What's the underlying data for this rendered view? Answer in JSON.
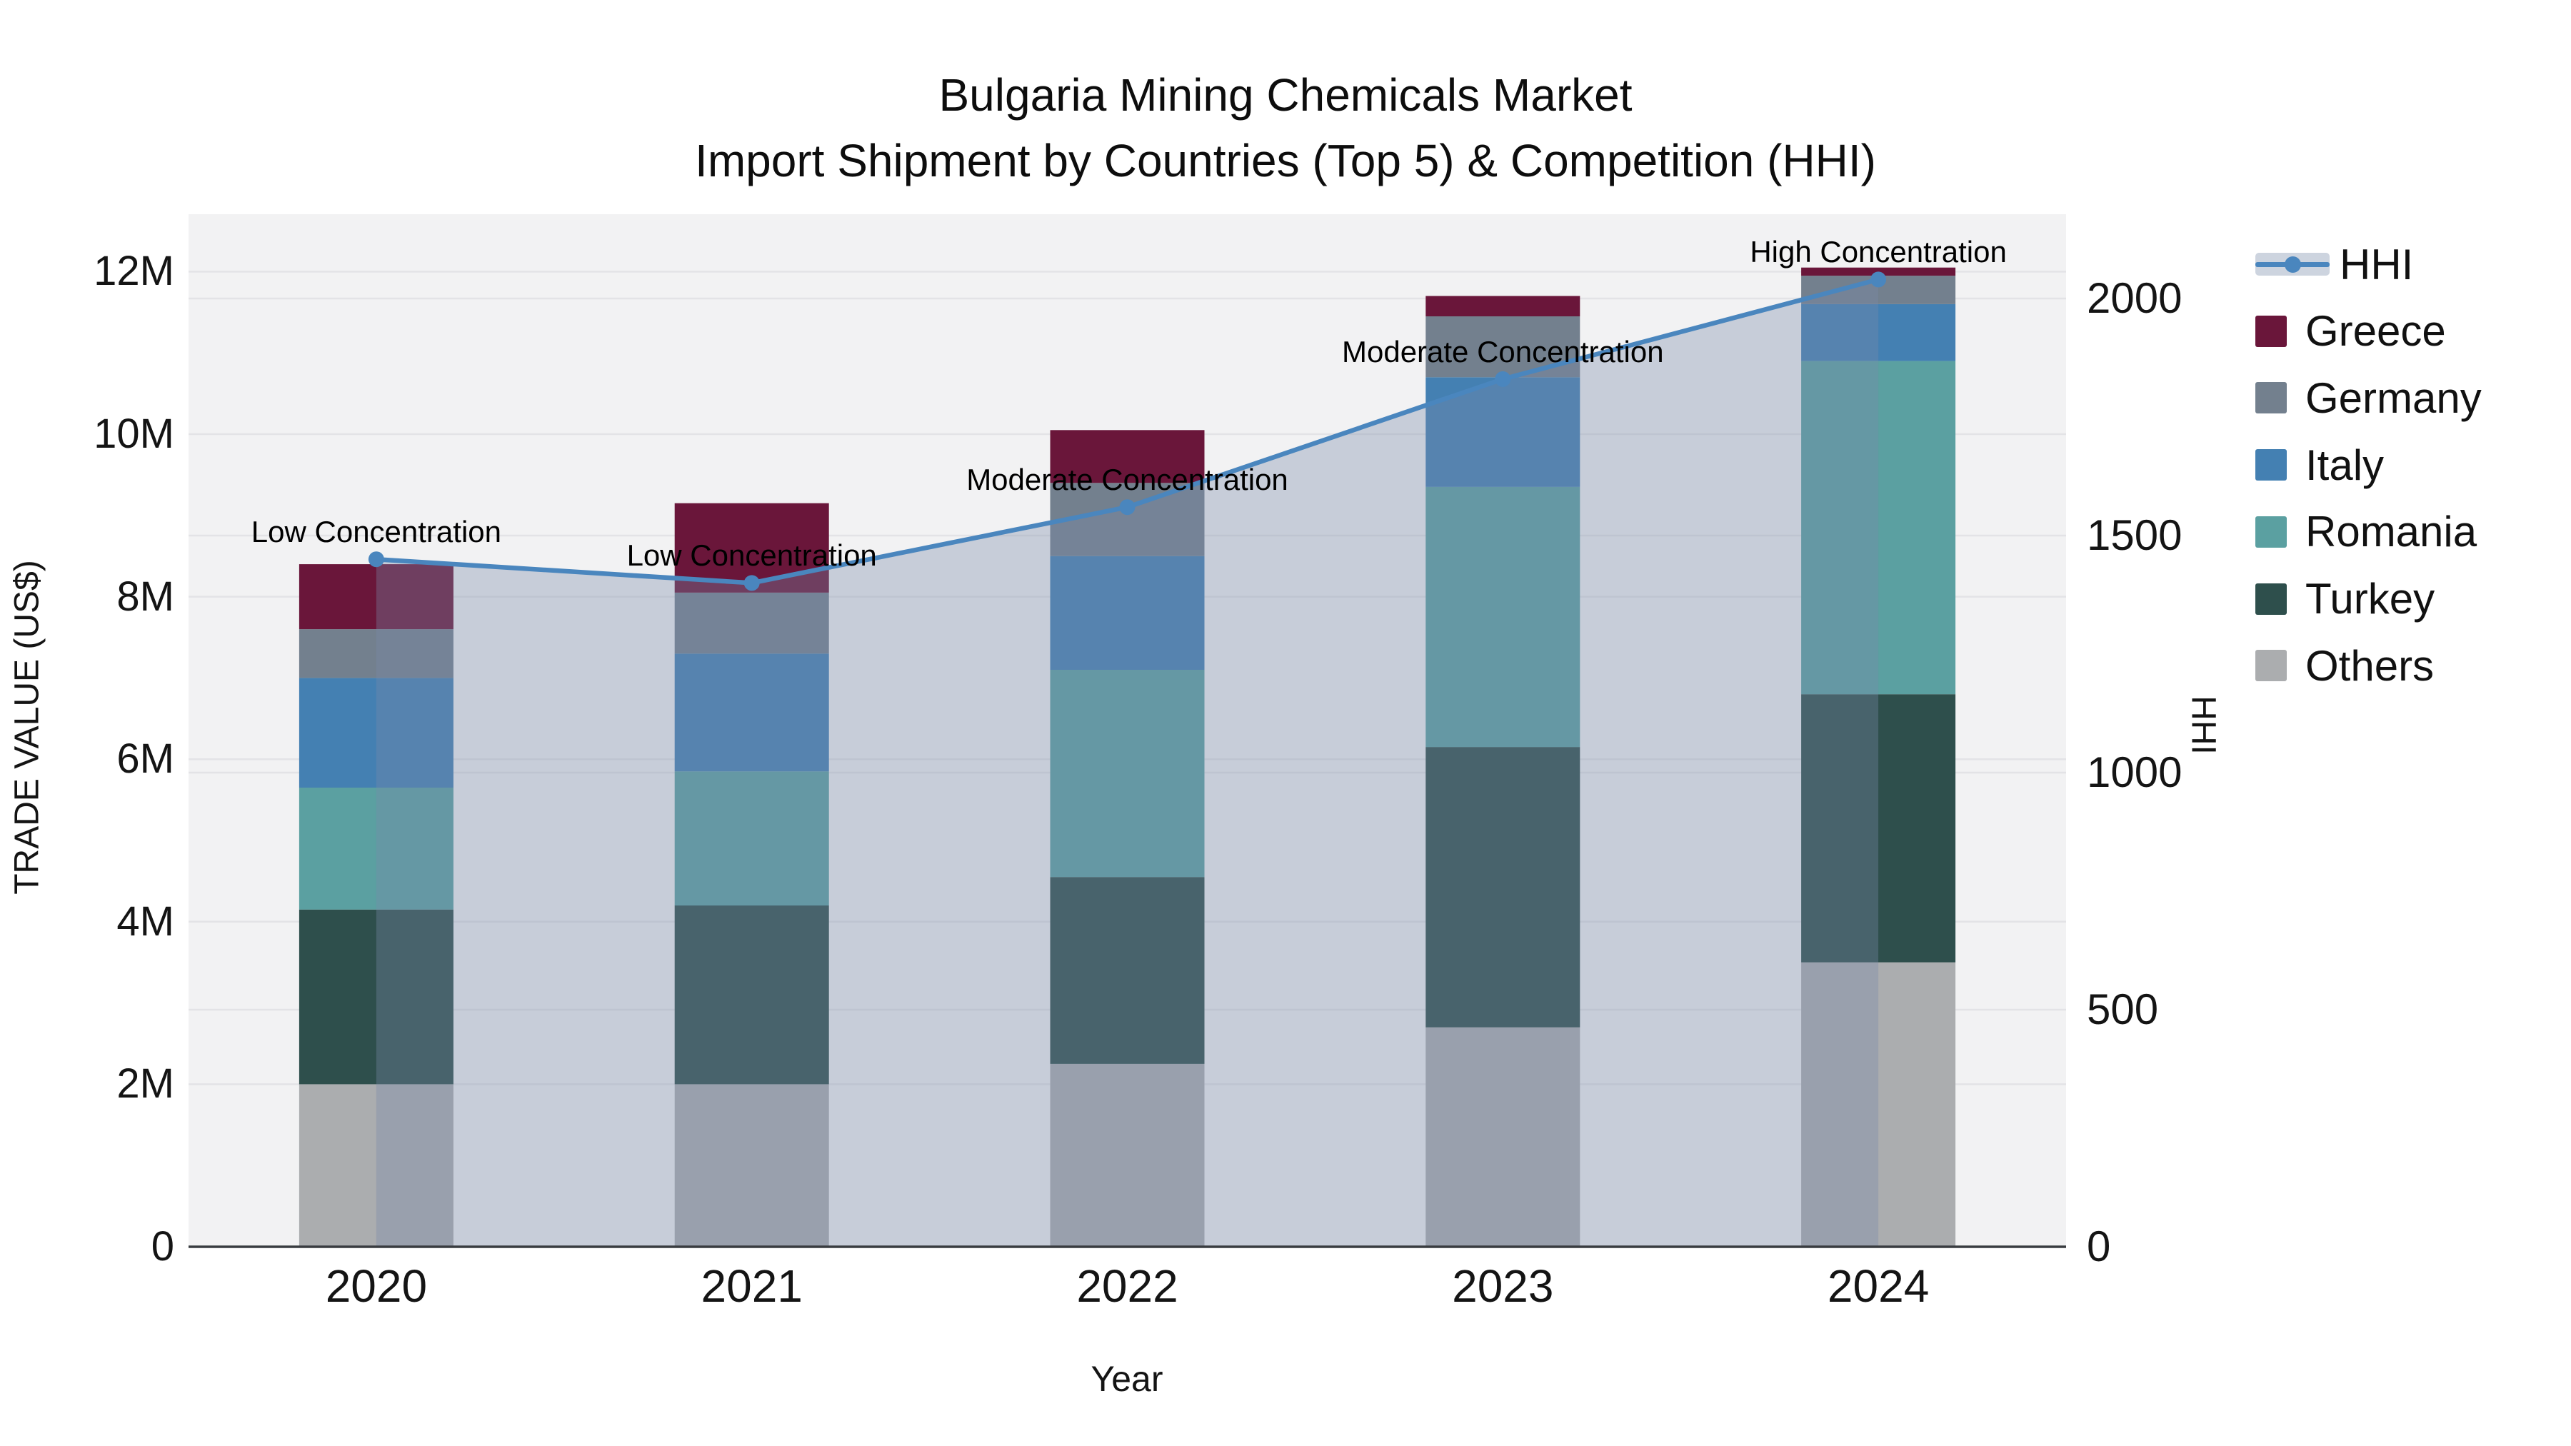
{
  "title": {
    "line1": "Bulgaria Mining Chemicals Market",
    "line2": "Import Shipment by Countries (Top 5) & Competition (HHI)"
  },
  "axes": {
    "y_left": {
      "title": "TRADE VALUE (US$)",
      "ticks": [
        "0",
        "2M",
        "4M",
        "6M",
        "8M",
        "10M",
        "12M"
      ],
      "tick_values": [
        0,
        2,
        4,
        6,
        8,
        10,
        12
      ]
    },
    "y_right": {
      "title": "HHI",
      "ticks": [
        "0",
        "500",
        "1000",
        "1500",
        "2000"
      ],
      "tick_values": [
        0,
        500,
        1000,
        1500,
        2000
      ]
    },
    "x": {
      "title": "Year",
      "categories": [
        "2020",
        "2021",
        "2022",
        "2023",
        "2024"
      ]
    }
  },
  "legend": [
    {
      "label": "HHI",
      "type": "line"
    },
    {
      "label": "Greece",
      "type": "box",
      "color_key": "Greece"
    },
    {
      "label": "Germany",
      "type": "box",
      "color_key": "Germany"
    },
    {
      "label": "Italy",
      "type": "box",
      "color_key": "Italy"
    },
    {
      "label": "Romania",
      "type": "box",
      "color_key": "Romania"
    },
    {
      "label": "Turkey",
      "type": "box",
      "color_key": "Turkey"
    },
    {
      "label": "Others",
      "type": "box",
      "color_key": "Others"
    }
  ],
  "annotations": [
    {
      "category": "2020",
      "text": "Low Concentration"
    },
    {
      "category": "2021",
      "text": "Low Concentration"
    },
    {
      "category": "2022",
      "text": "Moderate Concentration"
    },
    {
      "category": "2023",
      "text": "Moderate Concentration"
    },
    {
      "category": "2024",
      "text": "High Concentration"
    }
  ],
  "colors": {
    "Greece": "#6a163a",
    "Germany": "#73808e",
    "Italy": "#4480b2",
    "Romania": "#5ba0a1",
    "Turkey": "#2e4f4c",
    "Others": "#abadaf",
    "hhi_line": "#4a86be",
    "hhi_fill": "rgba(120,138,170,0.35)",
    "plot_bg": "#f2f2f3",
    "grid": "#e3e3e6",
    "axis_line": "#393c40",
    "text": "#111111"
  },
  "chart_data": {
    "type": "bar+line",
    "title": "Bulgaria Mining Chemicals Market — Import Shipment by Countries (Top 5) & Competition (HHI)",
    "categories": [
      "2020",
      "2021",
      "2022",
      "2023",
      "2024"
    ],
    "bar_units": "Million US$",
    "stack_order_bottom_to_top": [
      "Others",
      "Turkey",
      "Romania",
      "Italy",
      "Germany",
      "Greece"
    ],
    "series": [
      {
        "name": "Greece",
        "values": [
          0.8,
          1.1,
          0.65,
          0.25,
          0.1
        ]
      },
      {
        "name": "Germany",
        "values": [
          0.6,
          0.75,
          0.9,
          0.75,
          0.35
        ]
      },
      {
        "name": "Italy",
        "values": [
          1.35,
          1.45,
          1.4,
          1.35,
          0.7
        ]
      },
      {
        "name": "Romania",
        "values": [
          1.5,
          1.65,
          2.55,
          3.2,
          4.1
        ]
      },
      {
        "name": "Turkey",
        "values": [
          2.15,
          2.2,
          2.3,
          3.45,
          3.3
        ]
      },
      {
        "name": "Others",
        "values": [
          2.0,
          2.0,
          2.25,
          2.7,
          3.5
        ]
      }
    ],
    "stack_totals": [
      8.4,
      9.15,
      10.05,
      11.7,
      12.05
    ],
    "line_series": {
      "name": "HHI",
      "axis": "right",
      "values": [
        1450,
        1400,
        1560,
        1830,
        2040
      ],
      "area_fill": true
    },
    "xlabel": "Year",
    "ylabel_left": "TRADE VALUE (US$)",
    "ylabel_right": "HHI",
    "ylim_left": [
      0,
      12.7
    ],
    "ylim_right": [
      0,
      2180
    ],
    "grid": true,
    "legend_position": "right"
  }
}
